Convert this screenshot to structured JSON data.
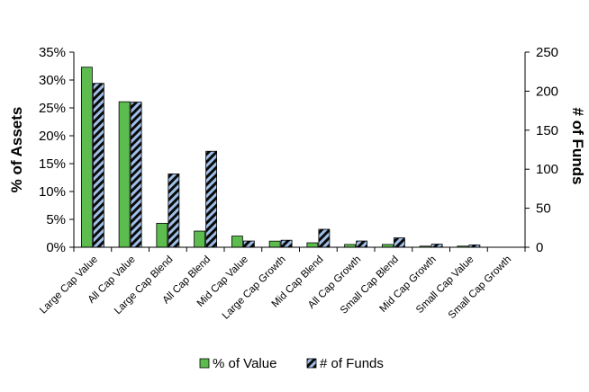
{
  "chart_data": {
    "type": "bar",
    "categories": [
      "Large Cap Value",
      "All Cap Value",
      "Large Cap Blend",
      "All Cap Blend",
      "Mid Cap Value",
      "Large Cap Growth",
      "Mid Cap Blend",
      "All Cap Growth",
      "Small Cap Blend",
      "Mid Cap Growth",
      "Small Cap Value",
      "Small Cap Growth"
    ],
    "series": [
      {
        "name": "% of Value",
        "axis": "left",
        "color": "#5cbd4e",
        "values": [
          32.3,
          26.1,
          4.3,
          2.9,
          2.0,
          1.1,
          0.8,
          0.5,
          0.5,
          0.2,
          0.2,
          0.0
        ]
      },
      {
        "name": "# of Funds",
        "axis": "right",
        "color": "#9fbfe6",
        "pattern": "black-stripes",
        "values": [
          210,
          186,
          94,
          123,
          8,
          9,
          23,
          8,
          12,
          4,
          3,
          0
        ]
      }
    ],
    "y_left": {
      "label": "% of Assets",
      "ylim": [
        0,
        35
      ],
      "ticks": [
        "0%",
        "5%",
        "10%",
        "15%",
        "20%",
        "25%",
        "30%",
        "35%"
      ]
    },
    "y_right": {
      "label": "# of Funds",
      "ylim": [
        0,
        250
      ],
      "ticks": [
        "0",
        "50",
        "100",
        "150",
        "200",
        "250"
      ]
    },
    "legend": {
      "placement": "bottom",
      "entries": [
        "% of Value",
        "# of Funds"
      ]
    },
    "grid": false
  }
}
